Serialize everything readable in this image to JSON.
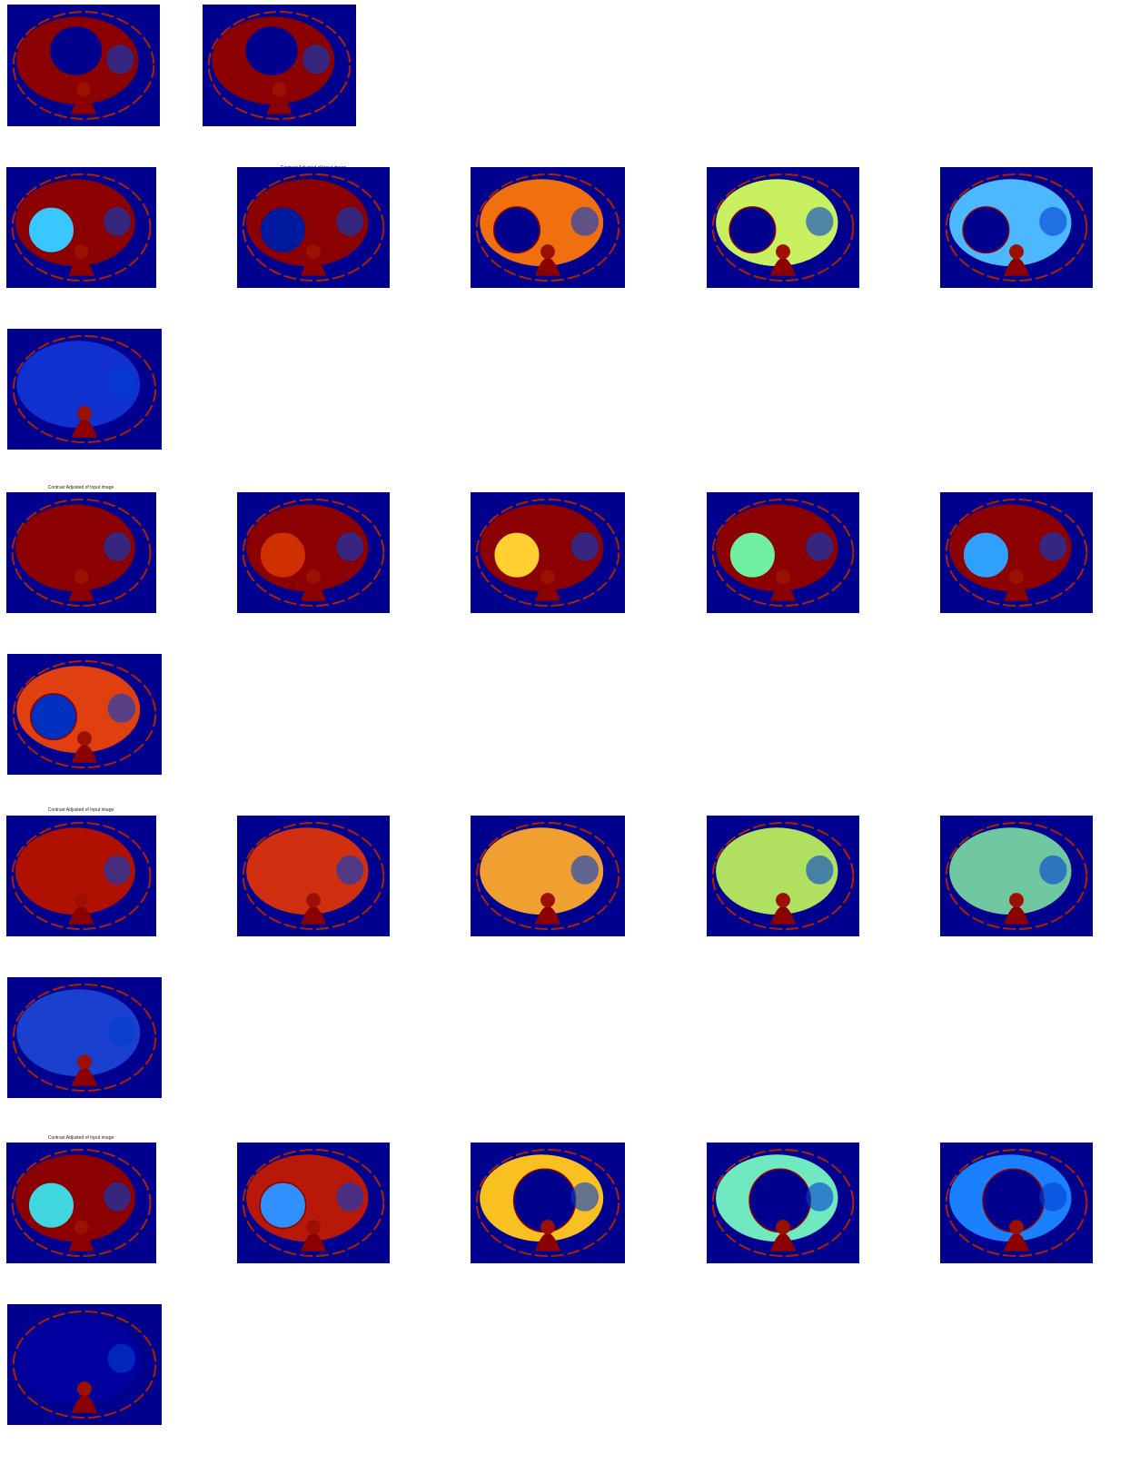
{
  "figures": [
    {
      "caption": "Contrast Adjusted of Input image"
    },
    {
      "caption": "Contrast Adjusted of Input image"
    },
    {
      "caption": "Contrast Adjusted of Input image"
    },
    {
      "caption": "Contrast Adjusted of Input image"
    }
  ]
}
